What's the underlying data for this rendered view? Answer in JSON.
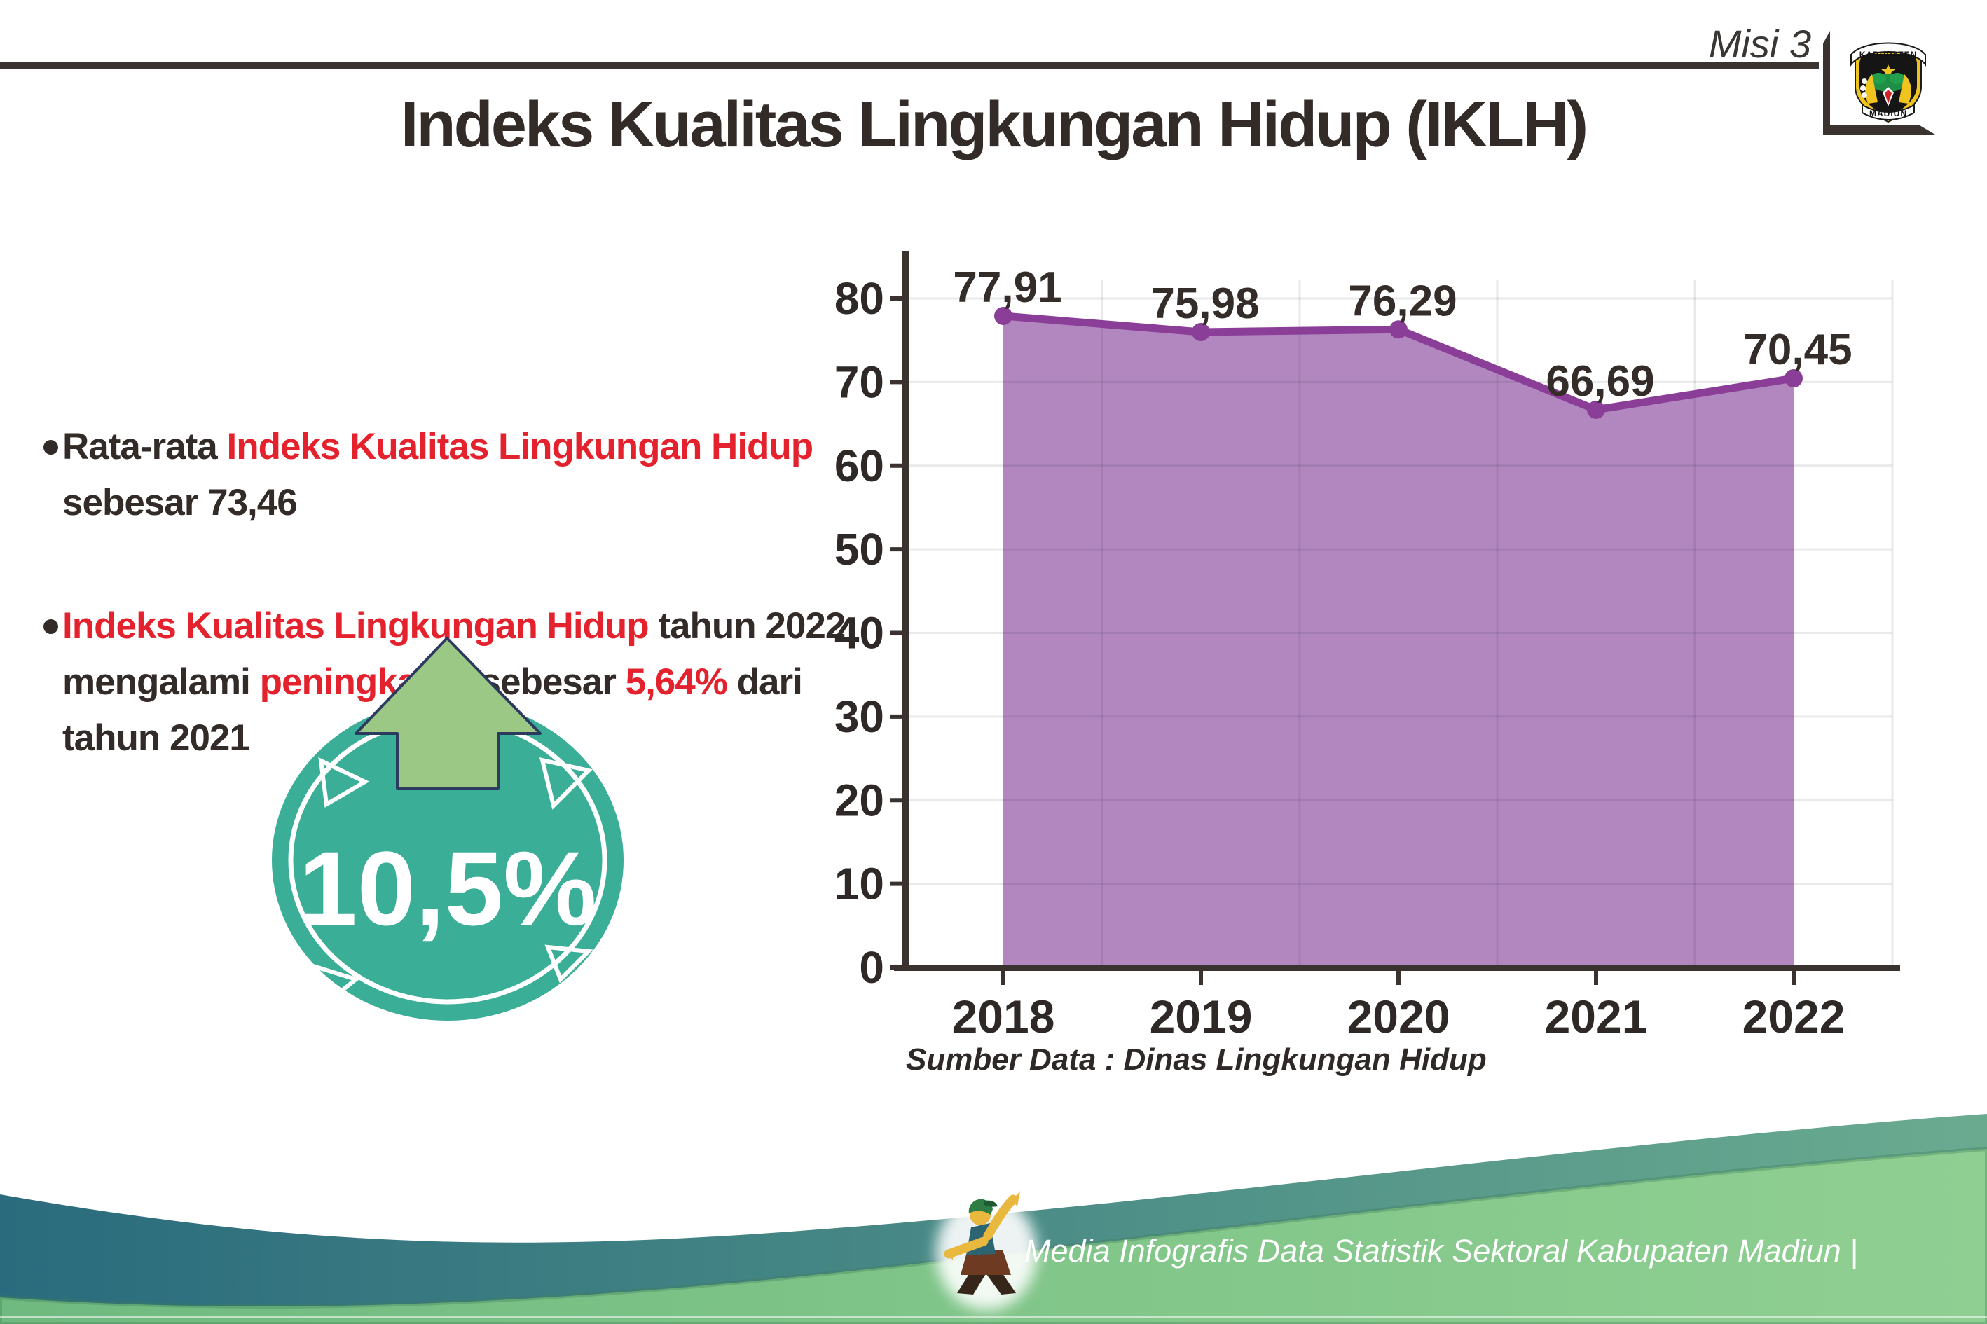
{
  "header": {
    "misi_label": "Misi 3",
    "title": "Indeks Kualitas Lingkungan Hidup (IKLH)",
    "logo_top": "KABUPATEN",
    "logo_bottom": "MADIUN"
  },
  "bullets": [
    {
      "segments": [
        {
          "t": "Rata-rata ",
          "c": "dark"
        },
        {
          "t": "Indeks Kualitas Lingkungan Hidup",
          "c": "red"
        },
        {
          "t": "\nsebesar 73,46",
          "c": "dark"
        }
      ]
    },
    {
      "segments": [
        {
          "t": "Indeks Kualitas Lingkungan Hidup",
          "c": "red"
        },
        {
          "t": " tahun 2022\nmengalami ",
          "c": "dark"
        },
        {
          "t": "peningkatan",
          "c": "red"
        },
        {
          "t": " sebesar ",
          "c": "dark"
        },
        {
          "t": "5,64%",
          "c": "red"
        },
        {
          "t": " dari\ntahun 2021",
          "c": "dark"
        }
      ]
    }
  ],
  "badge": {
    "value": "10,5%"
  },
  "chart_data": {
    "type": "area",
    "categories": [
      "2018",
      "2019",
      "2020",
      "2021",
      "2022"
    ],
    "values": [
      77.91,
      75.98,
      76.29,
      66.69,
      70.45
    ],
    "value_labels": [
      "77,91",
      "75,98",
      "76,29",
      "66,69",
      "70,45"
    ],
    "y_ticks": [
      0,
      10,
      20,
      30,
      40,
      50,
      60,
      70,
      80
    ],
    "ylim": [
      0,
      85
    ],
    "grid": true,
    "legend": "none",
    "title": "",
    "xlabel": "",
    "ylabel": "",
    "area_color": "#b287c0",
    "line_color": "#8a3e97",
    "marker_color": "#8a3e97",
    "label_color": "#332c29"
  },
  "source_note": "Sumber Data : Dinas Lingkungan Hidup",
  "footer": {
    "credit": "Media Infografis Data Statistik Sektoral Kabupaten Madiun |"
  },
  "colors": {
    "dark_text": "#332b28",
    "red_text": "#e4222d",
    "badge_teal": "#3aae96",
    "arrow_green": "#9cc885",
    "footer_teal_left": "#2a6b7d",
    "footer_teal_right": "#6aab90",
    "footer_green_left": "#6fba80",
    "footer_green_right": "#90cf92"
  }
}
